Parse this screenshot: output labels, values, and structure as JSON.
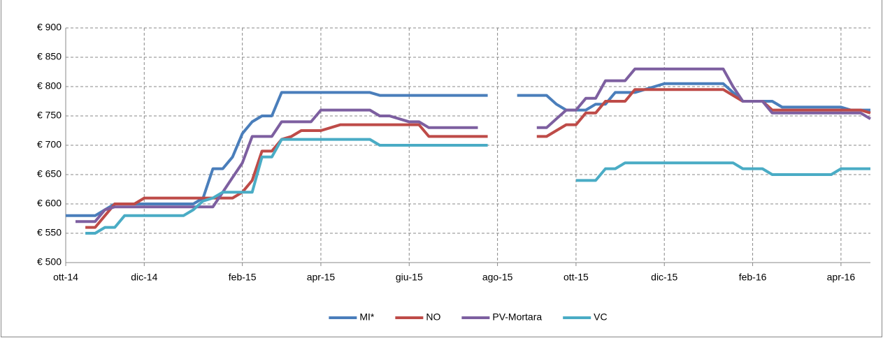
{
  "chart_data": {
    "type": "line",
    "categories": [
      "ott-14",
      null,
      null,
      null,
      null,
      null,
      null,
      null,
      "dic-14",
      null,
      null,
      null,
      null,
      null,
      null,
      null,
      null,
      null,
      "feb-15",
      null,
      null,
      null,
      null,
      null,
      null,
      null,
      "apr-15",
      null,
      null,
      null,
      null,
      null,
      null,
      null,
      null,
      "giu-15",
      null,
      null,
      null,
      null,
      null,
      null,
      null,
      null,
      "ago-15",
      null,
      null,
      null,
      null,
      null,
      null,
      null,
      "ott-15",
      null,
      null,
      null,
      null,
      null,
      null,
      null,
      null,
      "dic-15",
      null,
      null,
      null,
      null,
      null,
      null,
      null,
      null,
      "feb-16",
      null,
      null,
      null,
      null,
      null,
      null,
      null,
      null,
      "apr-16",
      null,
      null,
      null
    ],
    "series": [
      {
        "name": "MI*",
        "color": "#4a7ebb",
        "values": [
          580,
          580,
          580,
          580,
          590,
          600,
          600,
          600,
          600,
          600,
          600,
          600,
          600,
          600,
          610,
          660,
          660,
          680,
          720,
          740,
          750,
          750,
          790,
          790,
          790,
          790,
          790,
          790,
          790,
          790,
          790,
          790,
          785,
          785,
          785,
          785,
          785,
          785,
          785,
          785,
          785,
          785,
          785,
          785,
          null,
          null,
          785,
          785,
          785,
          785,
          770,
          760,
          760,
          760,
          770,
          770,
          790,
          790,
          790,
          795,
          800,
          805,
          805,
          805,
          805,
          805,
          805,
          805,
          790,
          775,
          775,
          775,
          775,
          765,
          765,
          765,
          765,
          765,
          765,
          765,
          760,
          760,
          760
        ]
      },
      {
        "name": "NO",
        "color": "#be4b48",
        "values": [
          null,
          null,
          560,
          560,
          580,
          600,
          600,
          600,
          610,
          610,
          610,
          610,
          610,
          610,
          610,
          610,
          610,
          610,
          620,
          640,
          690,
          690,
          710,
          715,
          725,
          725,
          725,
          730,
          735,
          735,
          735,
          735,
          735,
          735,
          735,
          735,
          735,
          715,
          715,
          715,
          715,
          715,
          715,
          715,
          null,
          null,
          null,
          null,
          715,
          715,
          725,
          735,
          735,
          755,
          755,
          775,
          775,
          775,
          795,
          795,
          795,
          795,
          795,
          795,
          795,
          795,
          795,
          795,
          785,
          775,
          775,
          775,
          760,
          760,
          760,
          760,
          760,
          760,
          760,
          760,
          760,
          760,
          755
        ]
      },
      {
        "name": "PV-Mortara",
        "color": "#7d5fa0",
        "values": [
          null,
          570,
          570,
          570,
          590,
          595,
          595,
          595,
          595,
          595,
          595,
          595,
          595,
          595,
          595,
          595,
          620,
          645,
          670,
          715,
          715,
          715,
          740,
          740,
          740,
          740,
          760,
          760,
          760,
          760,
          760,
          760,
          750,
          750,
          745,
          740,
          740,
          730,
          730,
          730,
          730,
          730,
          730,
          null,
          null,
          null,
          null,
          null,
          730,
          730,
          745,
          760,
          760,
          780,
          780,
          810,
          810,
          810,
          830,
          830,
          830,
          830,
          830,
          830,
          830,
          830,
          830,
          830,
          800,
          775,
          775,
          775,
          755,
          755,
          755,
          755,
          755,
          755,
          755,
          755,
          755,
          755,
          745
        ]
      },
      {
        "name": "VC",
        "color": "#4aacc5",
        "values": [
          null,
          null,
          550,
          550,
          560,
          560,
          580,
          580,
          580,
          580,
          580,
          580,
          580,
          590,
          605,
          610,
          620,
          620,
          620,
          620,
          680,
          680,
          710,
          710,
          710,
          710,
          710,
          710,
          710,
          710,
          710,
          710,
          700,
          700,
          700,
          700,
          700,
          700,
          700,
          700,
          700,
          700,
          700,
          700,
          null,
          null,
          null,
          null,
          null,
          null,
          null,
          null,
          640,
          640,
          640,
          660,
          660,
          670,
          670,
          670,
          670,
          670,
          670,
          670,
          670,
          670,
          670,
          670,
          670,
          660,
          660,
          660,
          650,
          650,
          650,
          650,
          650,
          650,
          650,
          660,
          660,
          660,
          660
        ]
      }
    ],
    "ylim": [
      500,
      900
    ],
    "yticks": [
      {
        "value": 500,
        "label": "€ 500"
      },
      {
        "value": 550,
        "label": "€ 550"
      },
      {
        "value": 600,
        "label": "€ 600"
      },
      {
        "value": 650,
        "label": "€ 650"
      },
      {
        "value": 700,
        "label": "€ 700"
      },
      {
        "value": 750,
        "label": "€ 750"
      },
      {
        "value": 800,
        "label": "€ 800"
      },
      {
        "value": 850,
        "label": "€ 850"
      },
      {
        "value": 900,
        "label": "€ 900"
      }
    ],
    "grid": true,
    "legend": "bottom"
  }
}
